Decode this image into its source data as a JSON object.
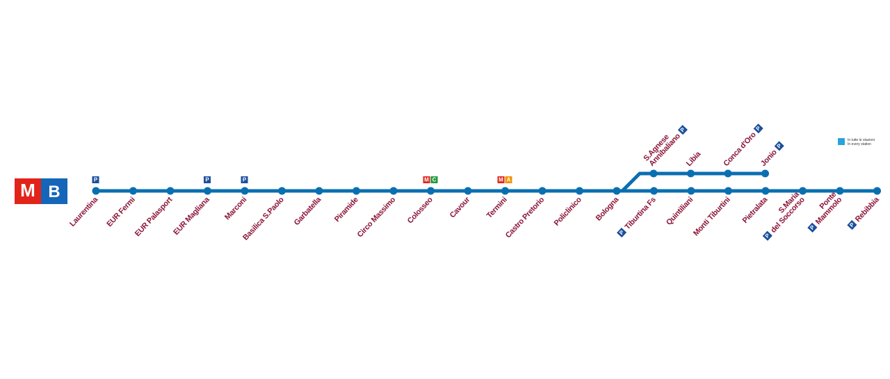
{
  "logo": {
    "left": "M",
    "right": "B"
  },
  "legend": {
    "lines": [
      "In tutte le stazioni",
      "In every station"
    ]
  },
  "main_line": [
    {
      "lines": [
        "Laurentina"
      ],
      "icons": [
        "P"
      ]
    },
    {
      "lines": [
        "EUR Fermi"
      ],
      "icons": []
    },
    {
      "lines": [
        "EUR Palasport"
      ],
      "icons": []
    },
    {
      "lines": [
        "EUR Magliana"
      ],
      "icons": [
        "P"
      ]
    },
    {
      "lines": [
        "Marconi"
      ],
      "icons": [
        "P"
      ]
    },
    {
      "lines": [
        "Basilica S.Paolo"
      ],
      "icons": []
    },
    {
      "lines": [
        "Garbatella"
      ],
      "icons": []
    },
    {
      "lines": [
        "Piramide"
      ],
      "icons": []
    },
    {
      "lines": [
        "Circo Massimo"
      ],
      "icons": []
    },
    {
      "lines": [
        "Colosseo"
      ],
      "icons": [
        "M",
        "C"
      ]
    },
    {
      "lines": [
        "Cavour"
      ],
      "icons": []
    },
    {
      "lines": [
        "Termini"
      ],
      "icons": [
        "M",
        "A"
      ]
    },
    {
      "lines": [
        "Castro Pretorio"
      ],
      "icons": []
    },
    {
      "lines": [
        "Policlinico"
      ],
      "icons": []
    },
    {
      "lines": [
        "Bologna"
      ],
      "icons": []
    },
    {
      "lines": [
        "Tiburtina Fs"
      ],
      "icons": [
        "P"
      ]
    },
    {
      "lines": [
        "Quintiliani"
      ],
      "icons": []
    },
    {
      "lines": [
        "Monti Tiburtini"
      ],
      "icons": []
    },
    {
      "lines": [
        "Pietralata"
      ],
      "icons": []
    },
    {
      "lines": [
        "S.Maria",
        "del Soccorso"
      ],
      "icons": [
        "P"
      ]
    },
    {
      "lines": [
        "Ponte",
        "Mammolo"
      ],
      "icons": [
        "P"
      ]
    },
    {
      "lines": [
        "Rebibbia"
      ],
      "icons": [
        "P"
      ]
    }
  ],
  "branch": [
    {
      "lines": [
        "S.Agnese",
        "Annibaliano"
      ],
      "icons": [
        "P"
      ]
    },
    {
      "lines": [
        "Libia"
      ],
      "icons": []
    },
    {
      "lines": [
        "Conca d'Oro"
      ],
      "icons": [
        "P"
      ]
    },
    {
      "lines": [
        "Jonio"
      ],
      "icons": [
        "P"
      ]
    }
  ]
}
